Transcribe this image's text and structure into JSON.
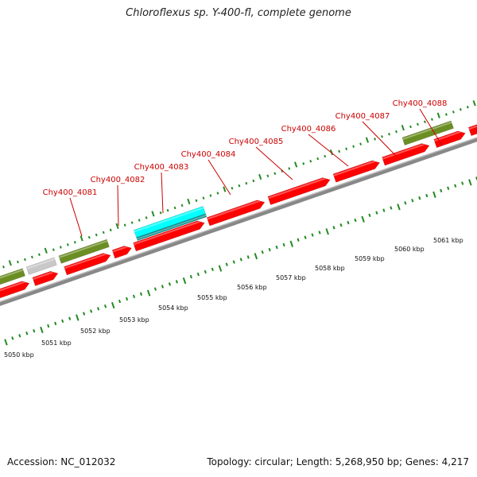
{
  "title": "Chloroflexus sp. Y-400-fl, complete genome",
  "accession": "Accession: NC_012032",
  "summary": "Topology: circular; Length: 5,268,950 bp; Genes: 4,217",
  "colors": {
    "cds": "#ff0000",
    "olive": "#6b8e23",
    "gray": "#c8c8c8",
    "cyan": "#00ffff",
    "ticks": "#228b22",
    "backbone": "#888888",
    "label": "#cc0000"
  },
  "gene_labels": [
    {
      "name": "Chy400_4081"
    },
    {
      "name": "Chy400_4082"
    },
    {
      "name": "Chy400_4083"
    },
    {
      "name": "Chy400_4084"
    },
    {
      "name": "Chy400_4085"
    },
    {
      "name": "Chy400_4086"
    },
    {
      "name": "Chy400_4087"
    },
    {
      "name": "Chy400_4088"
    }
  ],
  "kbp_ticks": [
    "5050 kbp",
    "5051 kbp",
    "5052 kbp",
    "5053 kbp",
    "5054 kbp",
    "5055 kbp",
    "5056 kbp",
    "5057 kbp",
    "5058 kbp",
    "5059 kbp",
    "5060 kbp",
    "5061 kbp"
  ]
}
